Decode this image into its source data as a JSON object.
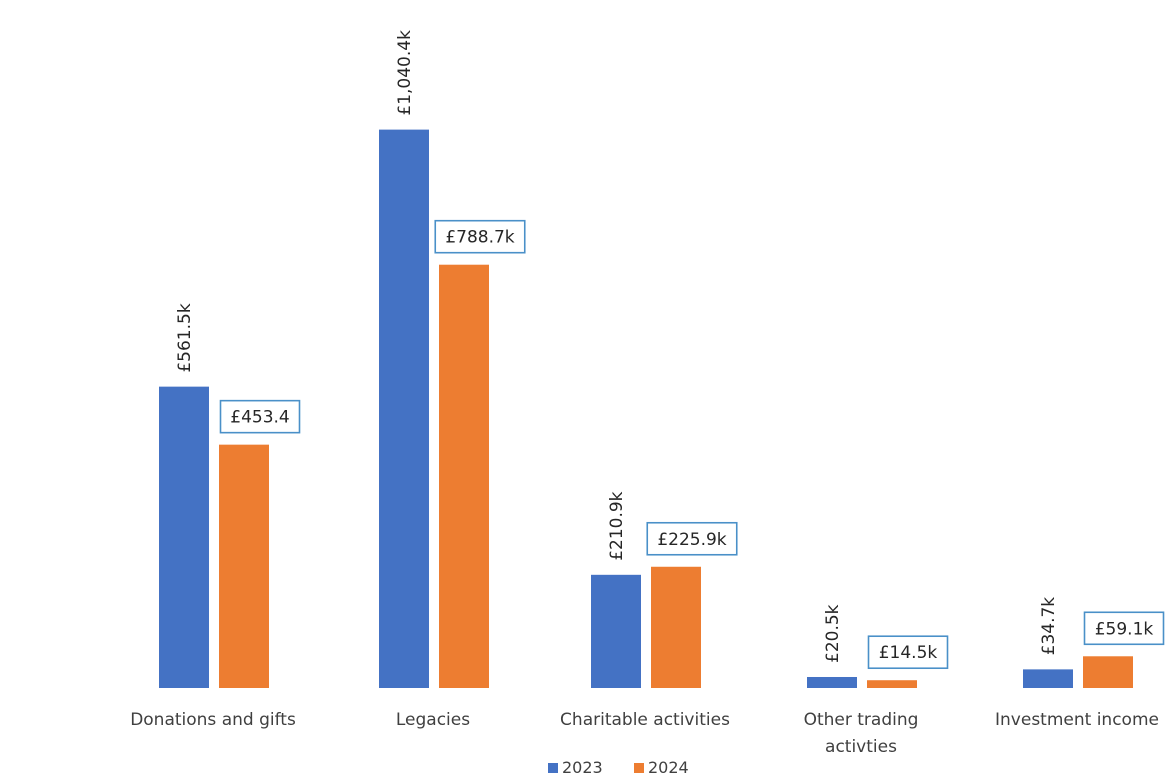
{
  "chart_data": {
    "type": "bar",
    "title": "",
    "xlabel": "",
    "ylabel": "",
    "ylim": [
      0,
      1100
    ],
    "grid": false,
    "legend_position": "bottom",
    "categories": [
      "Donations and gifts",
      "Legacies",
      "Charitable activities",
      "Other trading activties",
      "Investment income"
    ],
    "category_lines": [
      [
        "Donations and gifts"
      ],
      [
        "Legacies"
      ],
      [
        "Charitable activities"
      ],
      [
        "Other trading",
        "activties"
      ],
      [
        "Investment income"
      ]
    ],
    "series": [
      {
        "name": "2023",
        "color": "#4472c4",
        "values": [
          561.5,
          1040.4,
          210.9,
          20.5,
          34.7
        ],
        "labels": [
          "£561.5k",
          "£1,040.4k",
          "£210.9k",
          "£20.5k",
          "£34.7k"
        ],
        "label_style": "rotated"
      },
      {
        "name": "2024",
        "color": "#ed7d31",
        "values": [
          453.4,
          788.7,
          225.9,
          14.5,
          59.1
        ],
        "labels": [
          "£453.4",
          "£788.7k",
          "£225.9k",
          "£14.5k",
          "£59.1k"
        ],
        "label_style": "boxed"
      }
    ]
  }
}
